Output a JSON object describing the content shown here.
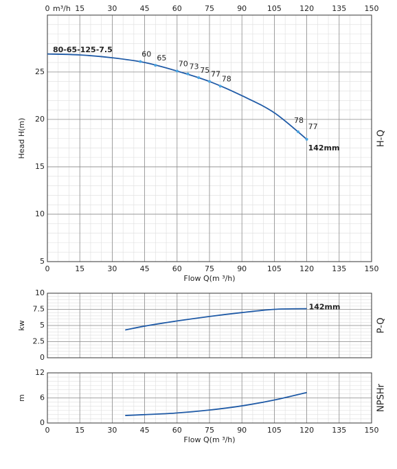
{
  "chart_data": [
    {
      "type": "line",
      "title": "80-65-125-7.5",
      "side_label": "H-Q",
      "y_label": "Head H(m)",
      "x_label": "Flow Q(m ³/h)",
      "top_unit": "m³/h",
      "xlim": [
        0,
        150
      ],
      "xticks": [
        0,
        15,
        30,
        45,
        60,
        75,
        90,
        105,
        120,
        135,
        150
      ],
      "ylim": [
        5,
        31
      ],
      "yticks": [
        5,
        10,
        15,
        20,
        25
      ],
      "grid": true,
      "minor_grid_x": 5,
      "minor_grid_y": 1,
      "series": [
        {
          "name": "142mm",
          "color": "#1f5aa6",
          "x": [
            0,
            15,
            30,
            45,
            60,
            75,
            90,
            105,
            120
          ],
          "values": [
            26.9,
            26.8,
            26.5,
            26.0,
            25.1,
            24.0,
            22.5,
            20.7,
            17.9
          ]
        }
      ],
      "efficiency": {
        "color": "#4aa3df",
        "x": [
          43,
          50,
          60,
          65,
          70,
          75,
          80,
          116,
          120
        ],
        "head": [
          26.1,
          25.7,
          25.1,
          24.8,
          24.4,
          24.0,
          23.5,
          18.7,
          17.9
        ],
        "values": [
          60,
          65,
          70,
          73,
          75,
          77,
          78,
          78,
          77
        ]
      }
    },
    {
      "type": "line",
      "side_label": "P-Q",
      "y_label": "kw",
      "xlim": [
        0,
        150
      ],
      "xticks": [
        0,
        15,
        30,
        45,
        60,
        75,
        90,
        105,
        120,
        135,
        150
      ],
      "ylim": [
        0,
        10
      ],
      "yticks": [
        0,
        2.5,
        5,
        7.5,
        10
      ],
      "grid": true,
      "minor_grid_x": 5,
      "minor_grid_y": 0.5,
      "series": [
        {
          "name": "142mm",
          "color": "#1f5aa6",
          "x": [
            36,
            45,
            60,
            75,
            90,
            105,
            120
          ],
          "values": [
            4.3,
            4.9,
            5.7,
            6.4,
            7.0,
            7.5,
            7.6
          ]
        }
      ]
    },
    {
      "type": "line",
      "side_label": "NPSHr",
      "y_label": "m",
      "x_label": "Flow Q(m ³/h)",
      "xlim": [
        0,
        150
      ],
      "xticks": [
        0,
        15,
        30,
        45,
        60,
        75,
        90,
        105,
        120,
        135,
        150
      ],
      "ylim": [
        0,
        12
      ],
      "yticks": [
        0,
        6,
        12
      ],
      "grid": true,
      "minor_grid_x": 5,
      "minor_grid_y": 1,
      "series": [
        {
          "color": "#1f5aa6",
          "x": [
            36,
            45,
            60,
            75,
            90,
            105,
            120
          ],
          "values": [
            1.8,
            2.0,
            2.4,
            3.1,
            4.1,
            5.5,
            7.3
          ]
        }
      ]
    }
  ]
}
